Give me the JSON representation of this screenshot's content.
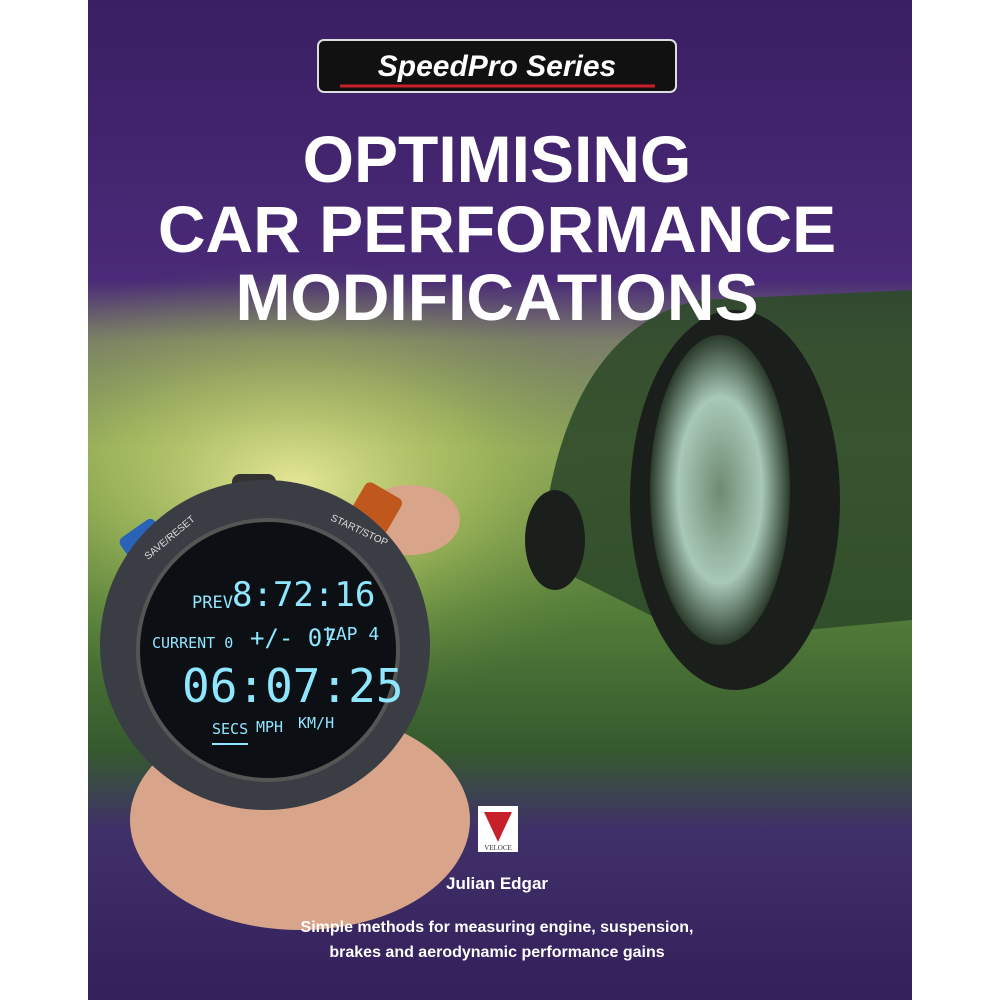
{
  "cover": {
    "series_badge": "SpeedPro Series",
    "title_lines": [
      "OPTIMISING",
      "CAR PERFORMANCE",
      "MODIFICATIONS"
    ],
    "stopwatch": {
      "left_button": "SAVE/RESET",
      "right_button": "START/STOP",
      "prev_label": "PREV",
      "prev_time": "8:72:16",
      "current_label": "CURRENT 0",
      "delta": "+/- 07",
      "lap": "LAP 4",
      "main_time": "06:07:25",
      "units": [
        "SECS",
        "MPH",
        "KM/H"
      ]
    },
    "publisher": "VELOCE",
    "author": "Julian Edgar",
    "subtitle_lines": [
      "Simple methods for measuring engine, suspension,",
      "brakes and aerodynamic performance gains"
    ]
  }
}
